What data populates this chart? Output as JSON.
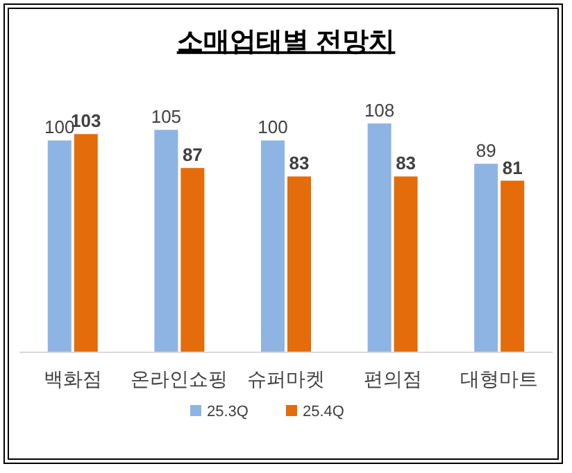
{
  "chart_data": {
    "type": "bar",
    "title": "소매업태별 전망치",
    "categories": [
      "백화점",
      "온라인쇼핑",
      "슈퍼마켓",
      "편의점",
      "대형마트"
    ],
    "series": [
      {
        "name": "25.3Q",
        "color": "#8eb4e3",
        "values": [
          100,
          105,
          100,
          108,
          89
        ]
      },
      {
        "name": "25.4Q",
        "color": "#e46c0a",
        "values": [
          103,
          87,
          83,
          83,
          81
        ]
      }
    ],
    "data_labels": true,
    "legend": "bottom"
  }
}
